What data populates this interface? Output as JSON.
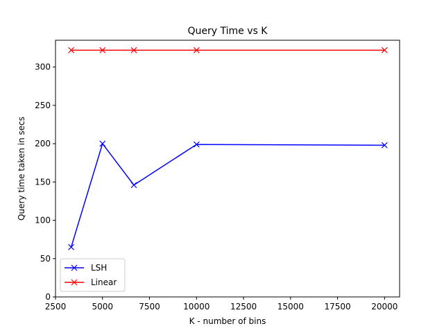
{
  "chart_data": {
    "type": "line",
    "title": "Query Time vs K",
    "xlabel": "K - number of bins",
    "ylabel": "Query time taken in secs",
    "xlim": [
      2500,
      20800
    ],
    "ylim": [
      0,
      335
    ],
    "xticks": [
      2500,
      5000,
      7500,
      10000,
      12500,
      15000,
      17500,
      20000
    ],
    "yticks": [
      0,
      50,
      100,
      150,
      200,
      250,
      300
    ],
    "grid": false,
    "legend_position": "lower-left",
    "marker": "x",
    "series": [
      {
        "name": "LSH",
        "color": "#0000ff",
        "x": [
          3333,
          5000,
          6667,
          10000,
          20000
        ],
        "y": [
          65,
          200,
          146,
          199,
          198
        ]
      },
      {
        "name": "Linear",
        "color": "#ff0000",
        "x": [
          3333,
          5000,
          6667,
          10000,
          20000
        ],
        "y": [
          322,
          322,
          322,
          322,
          322
        ]
      }
    ]
  }
}
